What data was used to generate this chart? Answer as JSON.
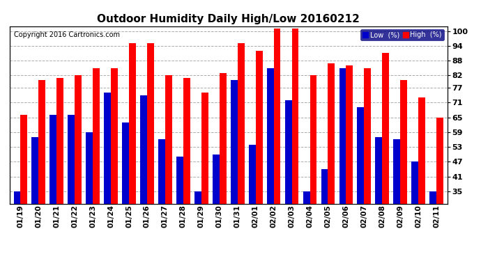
{
  "title": "Outdoor Humidity Daily High/Low 20160212",
  "copyright": "Copyright 2016 Cartronics.com",
  "dates": [
    "01/19",
    "01/20",
    "01/21",
    "01/22",
    "01/23",
    "01/24",
    "01/25",
    "01/26",
    "01/27",
    "01/28",
    "01/29",
    "01/30",
    "01/31",
    "02/01",
    "02/02",
    "02/03",
    "02/04",
    "02/05",
    "02/06",
    "02/07",
    "02/08",
    "02/09",
    "02/10",
    "02/11"
  ],
  "high_values": [
    66,
    80,
    81,
    82,
    85,
    85,
    95,
    95,
    82,
    81,
    75,
    83,
    95,
    92,
    101,
    101,
    82,
    87,
    86,
    85,
    91,
    80,
    73,
    65
  ],
  "low_values": [
    35,
    57,
    66,
    66,
    59,
    75,
    63,
    74,
    56,
    49,
    35,
    50,
    80,
    54,
    85,
    72,
    35,
    44,
    85,
    69,
    57,
    56,
    47,
    35
  ],
  "high_color": "#ff0000",
  "low_color": "#0000cc",
  "bg_color": "#ffffff",
  "grid_color": "#888888",
  "ylim_min": 30,
  "ylim_max": 102,
  "yticks": [
    35,
    41,
    47,
    53,
    59,
    65,
    71,
    77,
    82,
    88,
    94,
    100
  ],
  "legend_low_label": "Low  (%)",
  "legend_high_label": "High  (%)",
  "title_fontsize": 11,
  "copyright_fontsize": 7,
  "bar_width": 0.38
}
